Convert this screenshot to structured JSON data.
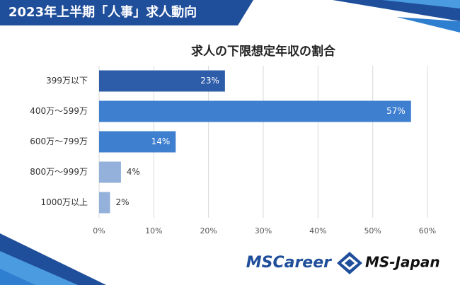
{
  "banner": "2023年上半期「人事」求人動向",
  "logos": [
    "MSCareer",
    "MS-Japan"
  ],
  "chart_data": {
    "type": "hbar",
    "title": "求人の下限想定年収の割合",
    "categories": [
      "399万以下",
      "400万～599万",
      "600万～799万",
      "800万～999万",
      "1000万以上"
    ],
    "values": [
      23,
      57,
      14,
      4,
      2
    ],
    "value_labels": [
      "23%",
      "57%",
      "14%",
      "4%",
      "2%"
    ],
    "colors": [
      "#2d5da8",
      "#3f7fd0",
      "#3f7fd0",
      "#93b1da",
      "#93b1da"
    ],
    "xlim": [
      0,
      60
    ],
    "xticks": [
      {
        "value": 0,
        "label": "0%"
      },
      {
        "value": 10,
        "label": "10%"
      },
      {
        "value": 20,
        "label": "20%"
      },
      {
        "value": 30,
        "label": "30%"
      },
      {
        "value": 40,
        "label": "40%"
      },
      {
        "value": 50,
        "label": "50%"
      },
      {
        "value": 60,
        "label": "60%"
      }
    ],
    "grid": true
  }
}
